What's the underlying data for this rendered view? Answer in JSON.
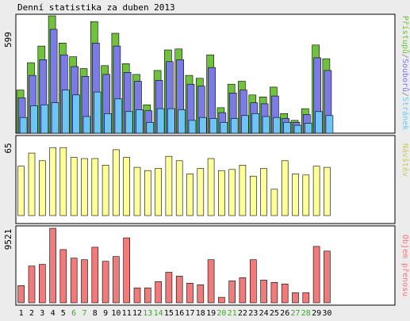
{
  "title": "Denní statistika za duben 2013",
  "colors": {
    "background": "#ececec",
    "panel": "#ffffff",
    "hits": "#6fc13e",
    "files": "#7b7be6",
    "pages": "#6ec5f5",
    "visits": "#ffff99",
    "volume": "#f07b7b",
    "weekday_label": "#000000",
    "weekend_label": "#3ea82a"
  },
  "chart_data": [
    {
      "type": "bar",
      "title": "Denní statistika za duben 2013",
      "ylabel": "",
      "ymax_label": "599",
      "legend_label": {
        "hits": "Přístupů",
        "sep1": "/",
        "files": "Souborů",
        "sep2": "/",
        "pages": "Stránek"
      },
      "ylim": [
        0,
        599
      ],
      "categories": [
        "1",
        "2",
        "3",
        "4",
        "5",
        "6",
        "7",
        "8",
        "9",
        "10",
        "11",
        "12",
        "13",
        "14",
        "15",
        "16",
        "17",
        "18",
        "19",
        "20",
        "21",
        "22",
        "23",
        "24",
        "25",
        "26",
        "27",
        "28",
        "29",
        "30"
      ],
      "series": [
        {
          "name": "Přístupů",
          "key": "hits",
          "values": [
            220,
            360,
            445,
            599,
            460,
            390,
            330,
            570,
            345,
            510,
            355,
            300,
            145,
            320,
            425,
            430,
            295,
            280,
            400,
            130,
            250,
            265,
            195,
            185,
            235,
            100,
            65,
            125,
            450,
            380
          ]
        },
        {
          "name": "Souborů",
          "key": "files",
          "values": [
            180,
            295,
            375,
            530,
            400,
            340,
            290,
            460,
            300,
            445,
            310,
            265,
            115,
            270,
            365,
            375,
            250,
            240,
            335,
            105,
            205,
            220,
            155,
            150,
            190,
            75,
            55,
            95,
            385,
            320
          ]
        },
        {
          "name": "Stránek",
          "key": "pages",
          "values": [
            80,
            140,
            145,
            155,
            220,
            195,
            85,
            210,
            100,
            175,
            110,
            120,
            55,
            125,
            125,
            120,
            65,
            80,
            75,
            55,
            75,
            90,
            100,
            85,
            80,
            55,
            40,
            50,
            110,
            90
          ]
        }
      ]
    },
    {
      "type": "bar",
      "ylabel": "",
      "ymax_label": "65",
      "legend_label": "Návštěv",
      "ylim": [
        0,
        65
      ],
      "categories": [
        "1",
        "2",
        "3",
        "4",
        "5",
        "6",
        "7",
        "8",
        "9",
        "10",
        "11",
        "12",
        "13",
        "14",
        "15",
        "16",
        "17",
        "18",
        "19",
        "20",
        "21",
        "22",
        "23",
        "24",
        "25",
        "26",
        "27",
        "28",
        "29",
        "30"
      ],
      "series": [
        {
          "name": "Návštěv",
          "key": "visits",
          "values": [
            45,
            57,
            50,
            62,
            62,
            53,
            52,
            52,
            46,
            60,
            53,
            44,
            41,
            43,
            54,
            50,
            38,
            43,
            52,
            41,
            42,
            46,
            36,
            43,
            24,
            50,
            38,
            37,
            45,
            44
          ]
        }
      ]
    },
    {
      "type": "bar",
      "ylabel": "",
      "ymax_label": "9521",
      "legend_label": "Objem přenosu",
      "ylim": [
        0,
        9521
      ],
      "categories": [
        "1",
        "2",
        "3",
        "4",
        "5",
        "6",
        "7",
        "8",
        "9",
        "10",
        "11",
        "12",
        "13",
        "14",
        "15",
        "16",
        "17",
        "18",
        "19",
        "20",
        "21",
        "22",
        "23",
        "24",
        "25",
        "26",
        "27",
        "28",
        "29",
        "30"
      ],
      "series": [
        {
          "name": "Objem přenosu",
          "key": "volume",
          "values": [
            2200,
            4700,
            4900,
            9521,
            6800,
            5700,
            5500,
            7100,
            5300,
            5900,
            8300,
            1900,
            1900,
            2700,
            3900,
            3400,
            2500,
            2300,
            5500,
            700,
            2800,
            3200,
            5500,
            2900,
            2600,
            2400,
            1300,
            1300,
            7200,
            6600
          ]
        }
      ]
    }
  ],
  "x_labels": {
    "weekend_days": [
      6,
      7,
      13,
      14,
      20,
      21,
      27,
      28
    ]
  }
}
